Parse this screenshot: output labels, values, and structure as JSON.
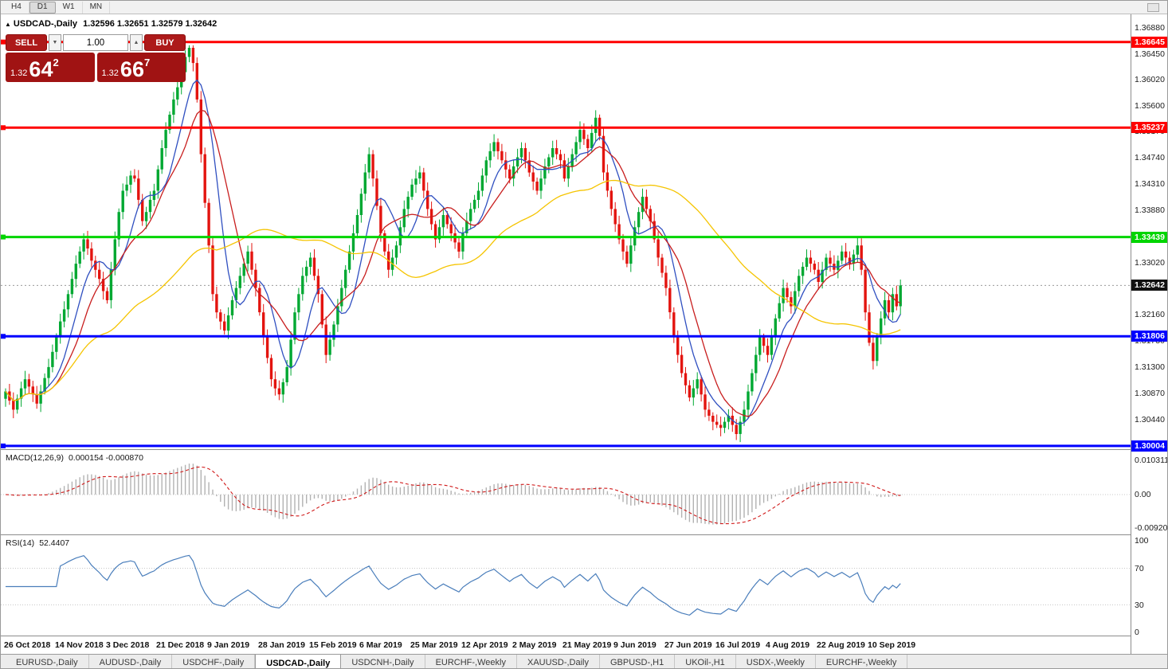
{
  "toolbar": {
    "timeframes": [
      "H4",
      "D1",
      "W1",
      "MN"
    ],
    "active": "D1"
  },
  "chart": {
    "collapse_icon": "▲",
    "title": "USDCAD-,Daily",
    "ohlc": "1.32596 1.32651 1.32579 1.32642"
  },
  "trade_panel": {
    "sell_label": "SELL",
    "buy_label": "BUY",
    "volume": "1.00",
    "sell_price": {
      "prefix": "1.32",
      "pips": "64",
      "pipette": "2"
    },
    "buy_price": {
      "prefix": "1.32",
      "pips": "66",
      "pipette": "7"
    }
  },
  "price_scale": {
    "labels": [
      "1.36880",
      "1.36450",
      "1.36020",
      "1.35600",
      "1.35170",
      "1.34740",
      "1.34310",
      "1.33880",
      "1.33450",
      "1.33020",
      "1.32590",
      "1.32160",
      "1.31730",
      "1.31300",
      "1.30870",
      "1.30440"
    ]
  },
  "macd_panel": {
    "name": "MACD(12,26,9)",
    "values": "0.000154 -0.000870",
    "axis": [
      "0.010311",
      "0.00",
      "-0.009203"
    ]
  },
  "rsi_panel": {
    "name": "RSI(14)",
    "value": "52.4407",
    "axis": [
      "100",
      "70",
      "30",
      "0"
    ]
  },
  "tabbar": {
    "items": [
      "EURUSD-,Daily",
      "AUDUSD-,Daily",
      "USDCHF-,Daily",
      "USDCAD-,Daily",
      "USDCNH-,Daily",
      "EURCHF-,Weekly",
      "XAUUSD-,Daily",
      "GBPUSD-,H1",
      "UKOil-,H1",
      "USDX-,Weekly",
      "EURCHF-,Weekly"
    ],
    "active_index": 3
  },
  "chart_data": {
    "type": "candlestick",
    "symbol": "USDCAD-",
    "timeframe": "Daily",
    "ohlc_current": {
      "open": "1.32596",
      "high": "1.32651",
      "low": "1.32579",
      "close": "1.32642"
    },
    "price_axis_range": {
      "min": 1.2995,
      "max": 1.371
    },
    "x_tick_labels": [
      "26 Oct 2018",
      "14 Nov 2018",
      "3 Dec 2018",
      "21 Dec 2018",
      "9 Jan 2019",
      "28 Jan 2019",
      "15 Feb 2019",
      "6 Mar 2019",
      "25 Mar 2019",
      "12 Apr 2019",
      "2 May 2019",
      "21 May 2019",
      "9 Jun 2019",
      "27 Jun 2019",
      "16 Jul 2019",
      "4 Aug 2019",
      "22 Aug 2019",
      "10 Sep 2019"
    ],
    "candles_per_tick": 13,
    "closes": [
      1.309,
      1.3075,
      1.306,
      1.3078,
      1.3095,
      1.311,
      1.3098,
      1.3085,
      1.307,
      1.309,
      1.3112,
      1.313,
      1.3155,
      1.318,
      1.3205,
      1.3225,
      1.325,
      1.3275,
      1.33,
      1.332,
      1.334,
      1.3325,
      1.3305,
      1.329,
      1.3275,
      1.3255,
      1.324,
      1.329,
      1.334,
      1.3385,
      1.342,
      1.343,
      1.3445,
      1.344,
      1.3405,
      1.337,
      1.3385,
      1.3405,
      1.342,
      1.3455,
      1.349,
      1.352,
      1.3545,
      1.357,
      1.359,
      1.3615,
      1.364,
      1.3655,
      1.363,
      1.357,
      1.348,
      1.34,
      1.333,
      1.325,
      1.322,
      1.3205,
      1.319,
      1.3215,
      1.324,
      1.326,
      1.328,
      1.33,
      1.332,
      1.329,
      1.326,
      1.322,
      1.318,
      1.3145,
      1.311,
      1.3095,
      1.3085,
      1.3105,
      1.313,
      1.3175,
      1.322,
      1.325,
      1.328,
      1.3295,
      1.331,
      1.328,
      1.325,
      1.32,
      1.315,
      1.3175,
      1.32,
      1.323,
      1.326,
      1.329,
      1.332,
      1.335,
      1.338,
      1.3415,
      1.345,
      1.348,
      1.344,
      1.3395,
      1.335,
      1.332,
      1.329,
      1.331,
      1.333,
      1.336,
      1.339,
      1.341,
      1.343,
      1.344,
      1.345,
      1.342,
      1.339,
      1.3365,
      1.334,
      1.336,
      1.338,
      1.3365,
      1.335,
      1.3335,
      1.332,
      1.335,
      1.337,
      1.339,
      1.3405,
      1.342,
      1.3445,
      1.347,
      1.3485,
      1.35,
      1.3485,
      1.347,
      1.3455,
      1.344,
      1.346,
      1.3475,
      1.349,
      1.347,
      1.345,
      1.3435,
      1.342,
      1.344,
      1.346,
      1.3475,
      1.349,
      1.348,
      1.347,
      1.344,
      1.346,
      1.348,
      1.35,
      1.352,
      1.3505,
      1.349,
      1.3515,
      1.354,
      1.351,
      1.345,
      1.342,
      1.339,
      1.3365,
      1.334,
      1.332,
      1.33,
      1.333,
      1.336,
      1.3385,
      1.341,
      1.339,
      1.337,
      1.334,
      1.331,
      1.3285,
      1.326,
      1.322,
      1.318,
      1.315,
      1.312,
      1.31,
      1.308,
      1.3095,
      1.311,
      1.3085,
      1.306,
      1.305,
      1.304,
      1.3035,
      1.303,
      1.304,
      1.305,
      1.3035,
      1.302,
      1.304,
      1.306,
      1.309,
      1.312,
      1.315,
      1.318,
      1.3165,
      1.315,
      1.318,
      1.321,
      1.3235,
      1.326,
      1.3245,
      1.323,
      1.3255,
      1.328,
      1.3295,
      1.331,
      1.33,
      1.329,
      1.327,
      1.329,
      1.331,
      1.33,
      1.329,
      1.3305,
      1.332,
      1.331,
      1.33,
      1.3315,
      1.333,
      1.329,
      1.322,
      1.317,
      1.314,
      1.318,
      1.321,
      1.324,
      1.322,
      1.325,
      1.323,
      1.32642
    ],
    "horizontal_lines": [
      {
        "price": 1.36645,
        "label": "1.36645",
        "color": "#FF0000"
      },
      {
        "price": 1.35237,
        "label": "1.35237",
        "color": "#FF0000"
      },
      {
        "price": 1.33439,
        "label": "1.33439",
        "color": "#00D500"
      },
      {
        "price": 1.31806,
        "label": "1.31806",
        "color": "#0000FF"
      },
      {
        "price": 1.30004,
        "label": "1.30004",
        "color": "#0000FF"
      }
    ],
    "current_price": {
      "value": 1.32642,
      "label": "1.32642",
      "badge_color": "#111111"
    },
    "moving_averages": [
      {
        "period": 8,
        "color": "#2F4FC0"
      },
      {
        "period": 13,
        "color": "#C81E1E"
      },
      {
        "period": 55,
        "color": "#F5C400"
      }
    ],
    "candle_colors": {
      "up": "#00A832",
      "down": "#E3140F"
    },
    "macd": {
      "fast": 12,
      "slow": 26,
      "signal": 9,
      "hist_color": "#B2B2B2",
      "signal_color": "#D01818",
      "axis_max": 0.010311,
      "axis_min": -0.009203
    },
    "rsi": {
      "period": 14,
      "color": "#4A7EBB",
      "levels": [
        70,
        30
      ]
    }
  }
}
